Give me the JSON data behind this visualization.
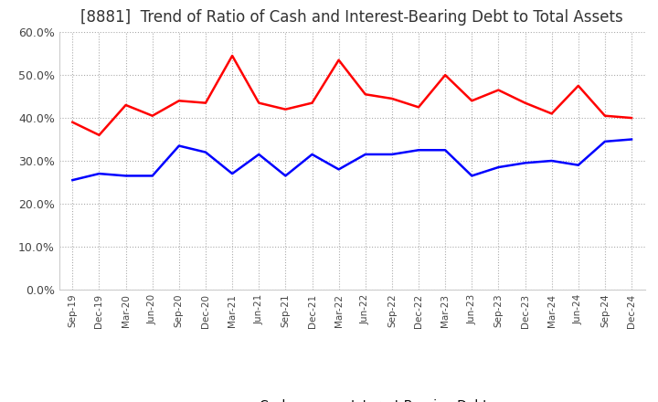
{
  "title": "[8881]  Trend of Ratio of Cash and Interest-Bearing Debt to Total Assets",
  "x_labels": [
    "Sep-19",
    "Dec-19",
    "Mar-20",
    "Jun-20",
    "Sep-20",
    "Dec-20",
    "Mar-21",
    "Jun-21",
    "Sep-21",
    "Dec-21",
    "Mar-22",
    "Jun-22",
    "Sep-22",
    "Dec-22",
    "Mar-23",
    "Jun-23",
    "Sep-23",
    "Dec-23",
    "Mar-24",
    "Jun-24",
    "Sep-24",
    "Dec-24"
  ],
  "cash": [
    0.39,
    0.36,
    0.43,
    0.405,
    0.44,
    0.435,
    0.545,
    0.435,
    0.42,
    0.435,
    0.535,
    0.455,
    0.445,
    0.425,
    0.5,
    0.44,
    0.465,
    0.435,
    0.41,
    0.475,
    0.405,
    0.4
  ],
  "interest_bearing_debt": [
    0.255,
    0.27,
    0.265,
    0.265,
    0.335,
    0.32,
    0.27,
    0.315,
    0.265,
    0.315,
    0.28,
    0.315,
    0.315,
    0.325,
    0.325,
    0.265,
    0.285,
    0.295,
    0.3,
    0.29,
    0.345,
    0.35
  ],
  "cash_color": "#ff0000",
  "debt_color": "#0000ff",
  "ylim": [
    0.0,
    0.6
  ],
  "yticks": [
    0.0,
    0.1,
    0.2,
    0.3,
    0.4,
    0.5,
    0.6
  ],
  "background_color": "#ffffff",
  "grid_color": "#aaaaaa",
  "title_fontsize": 12,
  "legend_cash": "Cash",
  "legend_debt": "Interest-Bearing Debt"
}
